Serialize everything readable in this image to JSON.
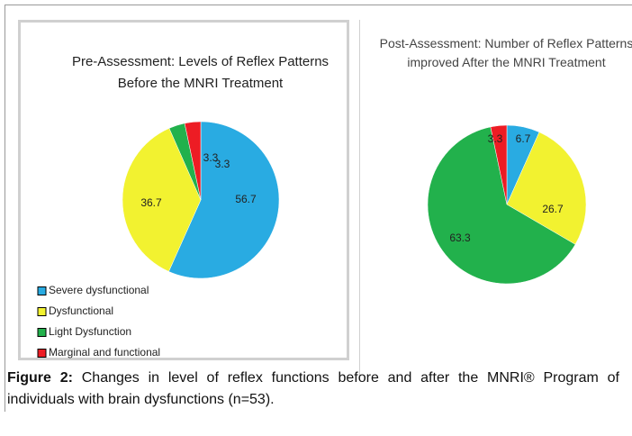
{
  "chart_data": [
    {
      "type": "pie",
      "title": "Pre-Assessment: Levels of Reflex Patterns Before the MNRI Treatment",
      "categories": [
        "Severe dysfunctional",
        "Dysfunctional",
        "Light Dysfunction",
        "Marginal and functional"
      ],
      "values": [
        56.7,
        36.7,
        3.3,
        3.3
      ],
      "colors": [
        "#29abe2",
        "#f2f230",
        "#22b14c",
        "#ed1c24"
      ]
    },
    {
      "type": "pie",
      "title": "Post-Assessment: Number of Reflex Patterns improved After the MNRI Treatment",
      "values": [
        6.7,
        26.7,
        63.3,
        3.3
      ],
      "colors": [
        "#29abe2",
        "#f2f230",
        "#22b14c",
        "#ed1c24"
      ]
    }
  ],
  "caption": {
    "label": "Figure 2:",
    "text": "Changes in level of reflex functions before and after the MNRI® Program of individuals with brain dysfunctions (n=53)."
  }
}
